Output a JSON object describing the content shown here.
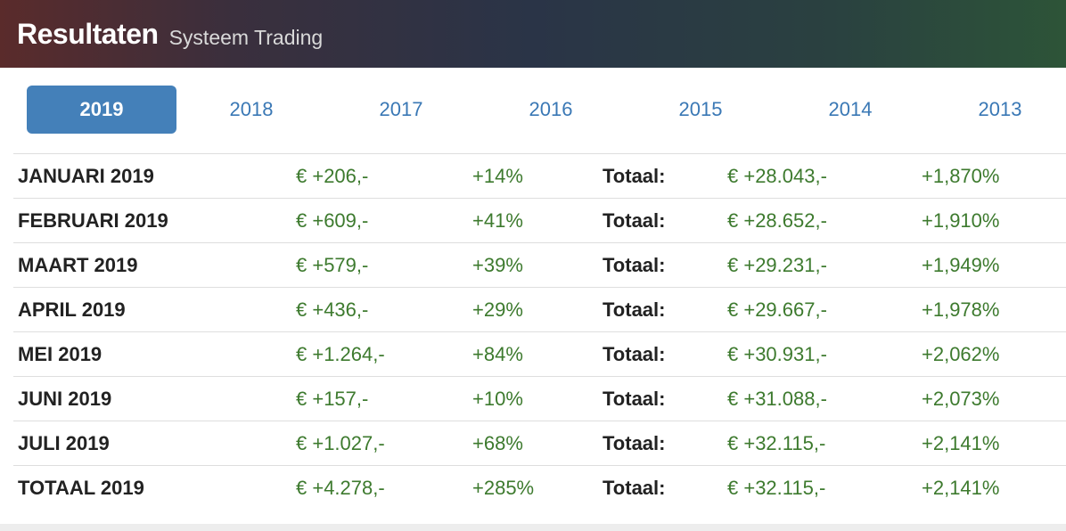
{
  "header": {
    "title": "Resultaten",
    "subtitle": "Systeem Trading"
  },
  "tabs": [
    {
      "label": "2019",
      "active": true
    },
    {
      "label": "2018",
      "active": false
    },
    {
      "label": "2017",
      "active": false
    },
    {
      "label": "2016",
      "active": false
    },
    {
      "label": "2015",
      "active": false
    },
    {
      "label": "2014",
      "active": false
    },
    {
      "label": "2013",
      "active": false
    }
  ],
  "colors": {
    "accent": "#4480b9",
    "positive": "#3d7a2e",
    "link": "#3a78b5"
  },
  "table": {
    "rows": [
      {
        "month": "JANUARI 2019",
        "amount": "€ +206,-",
        "pct": "+14%",
        "label": "Totaal:",
        "total": "€ +28.043,-",
        "total_pct": "+1,870%"
      },
      {
        "month": "FEBRUARI 2019",
        "amount": "€ +609,-",
        "pct": "+41%",
        "label": "Totaal:",
        "total": "€ +28.652,-",
        "total_pct": "+1,910%"
      },
      {
        "month": "MAART 2019",
        "amount": "€ +579,-",
        "pct": "+39%",
        "label": "Totaal:",
        "total": "€ +29.231,-",
        "total_pct": "+1,949%"
      },
      {
        "month": "APRIL 2019",
        "amount": "€ +436,-",
        "pct": "+29%",
        "label": "Totaal:",
        "total": "€ +29.667,-",
        "total_pct": "+1,978%"
      },
      {
        "month": "MEI 2019",
        "amount": "€ +1.264,-",
        "pct": "+84%",
        "label": "Totaal:",
        "total": "€ +30.931,-",
        "total_pct": "+2,062%"
      },
      {
        "month": "JUNI 2019",
        "amount": "€ +157,-",
        "pct": "+10%",
        "label": "Totaal:",
        "total": "€ +31.088,-",
        "total_pct": "+2,073%"
      },
      {
        "month": "JULI 2019",
        "amount": "€ +1.027,-",
        "pct": "+68%",
        "label": "Totaal:",
        "total": "€ +32.115,-",
        "total_pct": "+2,141%"
      },
      {
        "month": "TOTAAL 2019",
        "amount": "€ +4.278,-",
        "pct": "+285%",
        "label": "Totaal:",
        "total": "€ +32.115,-",
        "total_pct": "+2,141%"
      }
    ]
  }
}
